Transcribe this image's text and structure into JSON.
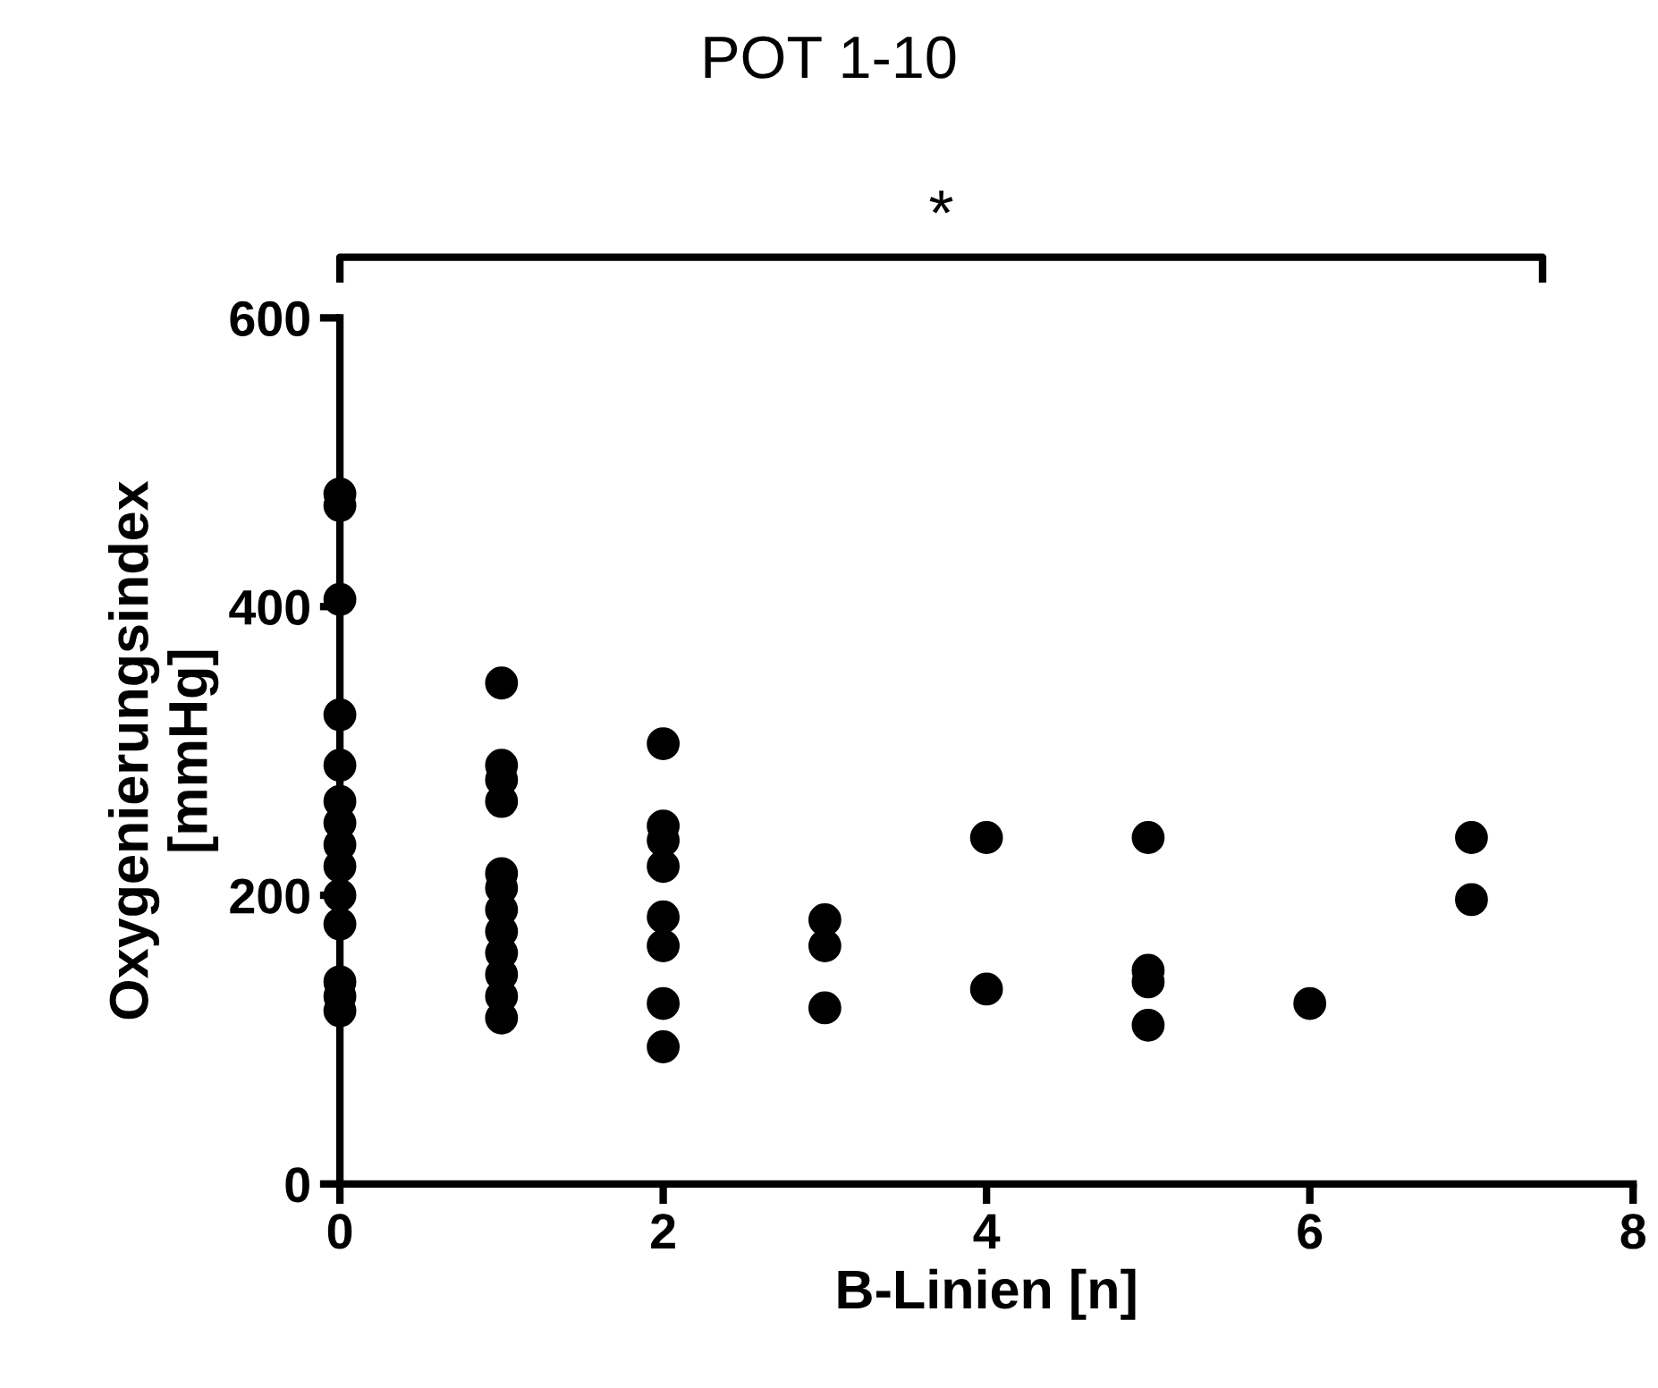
{
  "chart_data": {
    "type": "scatter",
    "title": "POT 1-10",
    "xlabel": "B-Linien [n]",
    "ylabel": "Oxygenierungsindex\n[mmHg]",
    "annotations": [
      "*"
    ],
    "series": [
      {
        "color": "#000000",
        "x": [
          0,
          0,
          0,
          0,
          0,
          0,
          0,
          0,
          0,
          0,
          0,
          0,
          0,
          0,
          1,
          1,
          1,
          1,
          1,
          1,
          1,
          1,
          1,
          1,
          1,
          1,
          2,
          2,
          2,
          2,
          2,
          2,
          2,
          2,
          3,
          3,
          3,
          4,
          4,
          5,
          5,
          5,
          5,
          6,
          7,
          7
        ],
        "values": [
          478,
          470,
          405,
          325,
          290,
          265,
          250,
          235,
          220,
          200,
          180,
          140,
          130,
          120,
          347,
          290,
          265,
          215,
          205,
          190,
          175,
          160,
          145,
          130,
          115,
          280,
          305,
          248,
          238,
          220,
          185,
          165,
          125,
          95,
          183,
          165,
          122,
          240,
          135,
          240,
          148,
          140,
          110,
          125,
          240,
          197
        ]
      }
    ],
    "xlim": [
      0,
      8
    ],
    "xticks": [
      0,
      2,
      4,
      6,
      8
    ],
    "ylim": [
      0,
      600
    ],
    "yticks": [
      0,
      200,
      400,
      600
    ],
    "grid": false,
    "legend": false,
    "marker": "circle"
  }
}
